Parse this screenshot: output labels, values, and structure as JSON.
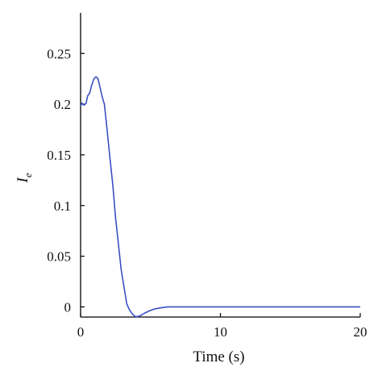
{
  "chart_data": {
    "type": "line",
    "title": "",
    "xlabel": "Time (s)",
    "ylabel": "I",
    "ylabel_subscript": "e",
    "xlim": [
      0,
      20
    ],
    "ylim": [
      -0.01,
      0.29
    ],
    "xticks": [
      0,
      10,
      20
    ],
    "xtick_labels": [
      "0",
      "10",
      "20"
    ],
    "yticks": [
      0,
      0.05,
      0.1,
      0.15,
      0.2,
      0.25
    ],
    "ytick_labels": [
      "0",
      "0.05",
      "0.1",
      "0.15",
      "0.2",
      "0.25"
    ],
    "grid": false,
    "series": [
      {
        "color": "#3a4fc4",
        "x": [
          0,
          0.1,
          0.25,
          0.4,
          0.5,
          0.65,
          0.8,
          0.95,
          1.1,
          1.25,
          1.4,
          1.55,
          1.7,
          1.9,
          2.1,
          2.3,
          2.5,
          2.7,
          2.9,
          3.1,
          3.3,
          3.5,
          3.7,
          3.9,
          4.1,
          4.3,
          4.6,
          4.9,
          5.3,
          5.7,
          6.2,
          7.0,
          10.0,
          15.0,
          20.0
        ],
        "y": [
          0.198,
          0.201,
          0.199,
          0.201,
          0.208,
          0.211,
          0.219,
          0.225,
          0.227,
          0.225,
          0.216,
          0.207,
          0.2,
          0.174,
          0.147,
          0.121,
          0.088,
          0.063,
          0.037,
          0.02,
          0.003,
          -0.003,
          -0.007,
          -0.0095,
          -0.0095,
          -0.0085,
          -0.006,
          -0.004,
          -0.002,
          -0.001,
          0.0,
          0.0,
          0.0,
          0.0,
          0.0
        ]
      }
    ]
  }
}
